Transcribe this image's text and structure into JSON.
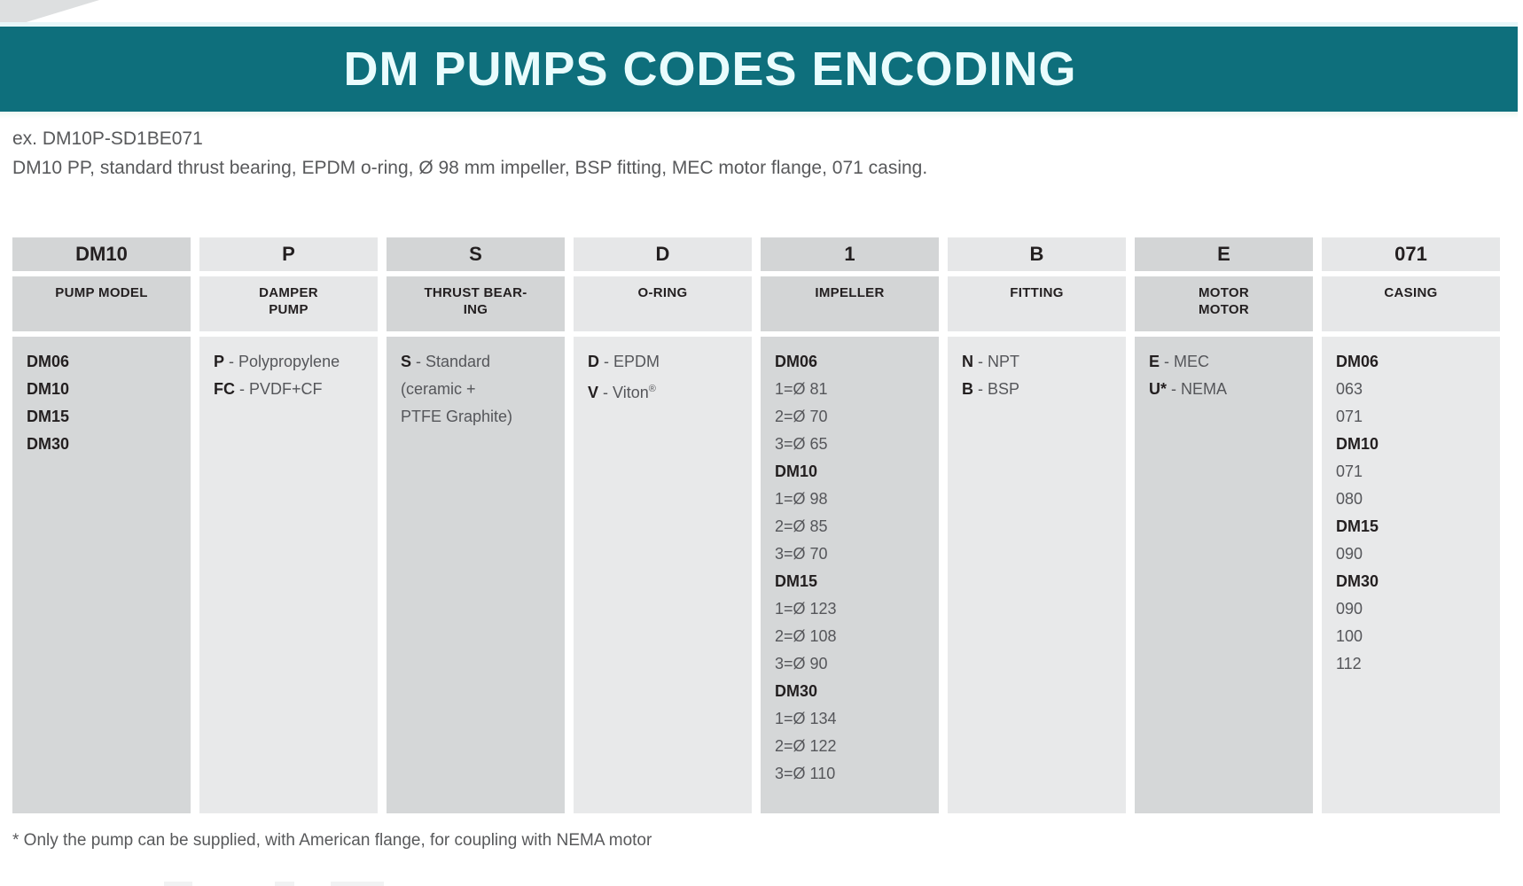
{
  "page": {
    "title": "DM PUMPS CODES ENCODING",
    "example_label": "ex. DM10P-SD1BE071",
    "example_description": "DM10 PP, standard thrust bearing, EPDM o-ring, Ø 98 mm impeller, BSP fitting, MEC motor flange, 071 casing.",
    "footnote": "* Only the pump can be supplied, with American flange, for coupling with NEMA motor"
  },
  "colors": {
    "banner_teal": "#0e6f7c",
    "title_text": "#eafcfd",
    "column_dark": "#d3d5d6",
    "column_light": "#e6e7e8",
    "text_black": "#231f20",
    "text_gray": "#58595b"
  },
  "table": {
    "columns": [
      {
        "code": "DM10",
        "category": "PUMP MODEL",
        "lines": [
          {
            "b": "DM06"
          },
          {
            "b": "DM10"
          },
          {
            "b": "DM15"
          },
          {
            "b": "DM30"
          }
        ]
      },
      {
        "code": "P",
        "category": "DAMPER\nPUMP",
        "lines": [
          {
            "b": "P",
            "t": " - Polypropylene"
          },
          {
            "b": "FC",
            "t": " - PVDF+CF"
          }
        ]
      },
      {
        "code": "S",
        "category": "THRUST BEAR-\nING",
        "lines": [
          {
            "b": "S",
            "t": " - Standard"
          },
          {
            "t": "(ceramic +"
          },
          {
            "t": "PTFE Graphite)"
          }
        ]
      },
      {
        "code": "D",
        "category": "O-RING",
        "lines": [
          {
            "b": "D",
            "t": " - EPDM"
          },
          {
            "b": "V",
            "t": " - Viton",
            "sup": "®"
          }
        ]
      },
      {
        "code": "1",
        "category": "IMPELLER",
        "lines": [
          {
            "b": "DM06"
          },
          {
            "t": "1=Ø 81"
          },
          {
            "t": "2=Ø 70"
          },
          {
            "t": "3=Ø 65"
          },
          {
            "b": "DM10"
          },
          {
            "t": "1=Ø 98"
          },
          {
            "t": "2=Ø 85"
          },
          {
            "t": "3=Ø 70"
          },
          {
            "b": "DM15"
          },
          {
            "t": "1=Ø 123"
          },
          {
            "t": "2=Ø 108"
          },
          {
            "t": "3=Ø 90"
          },
          {
            "b": "DM30"
          },
          {
            "t": "1=Ø 134"
          },
          {
            "t": "2=Ø 122"
          },
          {
            "t": "3=Ø 110"
          }
        ]
      },
      {
        "code": "B",
        "category": "FITTING",
        "lines": [
          {
            "b": "N",
            "t": " - NPT"
          },
          {
            "b": "B",
            "t": " - BSP"
          }
        ]
      },
      {
        "code": "E",
        "category": "MOTOR\nMOTOR",
        "lines": [
          {
            "b": "E",
            "t": " - MEC"
          },
          {
            "b": "U*",
            "t": " - NEMA"
          }
        ]
      },
      {
        "code": "071",
        "category": "CASING",
        "lines": [
          {
            "b": "DM06"
          },
          {
            "t": "063"
          },
          {
            "t": "071"
          },
          {
            "b": "DM10"
          },
          {
            "t": "071"
          },
          {
            "t": "080"
          },
          {
            "b": "DM15"
          },
          {
            "t": "090"
          },
          {
            "b": "DM30"
          },
          {
            "t": "090"
          },
          {
            "t": "100"
          },
          {
            "t": "112"
          }
        ]
      }
    ]
  }
}
